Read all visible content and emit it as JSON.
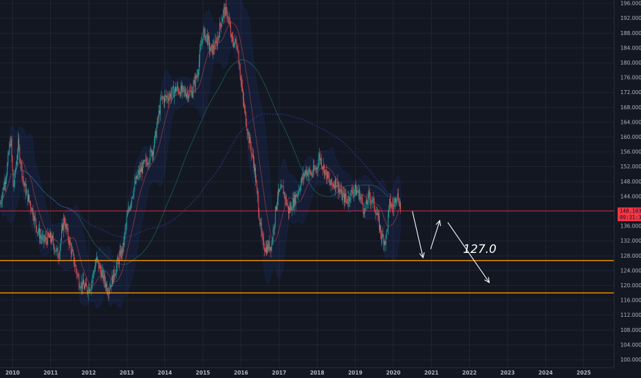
{
  "chart_data": {
    "type": "candlestick",
    "xlim": [
      2009.67,
      2025.8
    ],
    "ylim": [
      96.0,
      196.0
    ],
    "y_ticks": [
      "100.000",
      "104.000",
      "108.000",
      "112.000",
      "116.000",
      "120.000",
      "124.000",
      "128.000",
      "132.000",
      "136.000",
      "140.000",
      "144.000",
      "148.000",
      "152.000",
      "156.000",
      "160.000",
      "164.000",
      "168.000",
      "172.000",
      "176.000",
      "180.000",
      "184.000",
      "188.000",
      "192.000",
      "196.000"
    ],
    "x_ticks": [
      "2010",
      "2011",
      "2012",
      "2013",
      "2014",
      "2015",
      "2016",
      "2017",
      "2018",
      "2019",
      "2020",
      "2021",
      "2022",
      "2023",
      "2024",
      "2025"
    ],
    "path": [
      [
        2009.67,
        142
      ],
      [
        2009.85,
        151
      ],
      [
        2009.95,
        160
      ],
      [
        2010.02,
        146
      ],
      [
        2010.15,
        158
      ],
      [
        2010.3,
        147
      ],
      [
        2010.5,
        141
      ],
      [
        2010.65,
        135
      ],
      [
        2010.8,
        132
      ],
      [
        2011.0,
        133
      ],
      [
        2011.2,
        128
      ],
      [
        2011.35,
        138
      ],
      [
        2011.55,
        129
      ],
      [
        2011.75,
        121
      ],
      [
        2011.95,
        119
      ],
      [
        2012.05,
        120
      ],
      [
        2012.2,
        127
      ],
      [
        2012.35,
        123
      ],
      [
        2012.5,
        119
      ],
      [
        2012.6,
        121
      ],
      [
        2012.75,
        126
      ],
      [
        2012.9,
        130
      ],
      [
        2013.0,
        138
      ],
      [
        2013.15,
        145
      ],
      [
        2013.3,
        150
      ],
      [
        2013.5,
        153
      ],
      [
        2013.7,
        157
      ],
      [
        2013.9,
        170
      ],
      [
        2014.1,
        171
      ],
      [
        2014.3,
        173
      ],
      [
        2014.5,
        172
      ],
      [
        2014.7,
        172
      ],
      [
        2014.85,
        177
      ],
      [
        2015.0,
        188
      ],
      [
        2015.1,
        187
      ],
      [
        2015.2,
        183
      ],
      [
        2015.35,
        185
      ],
      [
        2015.45,
        190
      ],
      [
        2015.55,
        194
      ],
      [
        2015.65,
        193
      ],
      [
        2015.75,
        186
      ],
      [
        2015.9,
        185
      ],
      [
        2016.05,
        170
      ],
      [
        2016.2,
        160
      ],
      [
        2016.35,
        152
      ],
      [
        2016.45,
        142
      ],
      [
        2016.55,
        132
      ],
      [
        2016.65,
        130
      ],
      [
        2016.8,
        131
      ],
      [
        2016.95,
        144
      ],
      [
        2017.1,
        146
      ],
      [
        2017.25,
        140
      ],
      [
        2017.4,
        143
      ],
      [
        2017.55,
        147
      ],
      [
        2017.7,
        151
      ],
      [
        2017.85,
        150
      ],
      [
        2018.0,
        152
      ],
      [
        2018.05,
        155
      ],
      [
        2018.2,
        151
      ],
      [
        2018.35,
        147
      ],
      [
        2018.5,
        148
      ],
      [
        2018.65,
        144
      ],
      [
        2018.8,
        143
      ],
      [
        2018.95,
        146
      ],
      [
        2019.1,
        145
      ],
      [
        2019.25,
        140
      ],
      [
        2019.35,
        144
      ],
      [
        2019.45,
        143
      ],
      [
        2019.55,
        140
      ],
      [
        2019.7,
        133
      ],
      [
        2019.8,
        132
      ],
      [
        2019.9,
        142
      ],
      [
        2020.0,
        141
      ],
      [
        2020.08,
        145
      ],
      [
        2020.15,
        143
      ],
      [
        2020.2,
        140.103
      ]
    ],
    "last_price": "140.103",
    "countdown": "09:31:36",
    "levels": [
      {
        "value": 140.103,
        "color": "#f23645"
      },
      {
        "value": 126.7,
        "color": "#ff9800"
      },
      {
        "value": 118.0,
        "color": "#ff9800"
      }
    ],
    "annotation": "127.0",
    "arrows": [
      {
        "from": [
          2020.5,
          140.0
        ],
        "to": [
          2020.78,
          127.5
        ]
      },
      {
        "from": [
          2020.98,
          129.8
        ],
        "to": [
          2021.22,
          137.5
        ]
      },
      {
        "from": [
          2021.43,
          137.0
        ],
        "to": [
          2022.52,
          120.8
        ]
      }
    ],
    "colors": {
      "background": "#131722",
      "grid": "#2a2e39",
      "up": "#26a69a",
      "down": "#ef5350",
      "band_fill": "#2962ff",
      "axis_text": "#b2b5be",
      "level": "#ff9800",
      "price_line": "#f23645"
    }
  }
}
